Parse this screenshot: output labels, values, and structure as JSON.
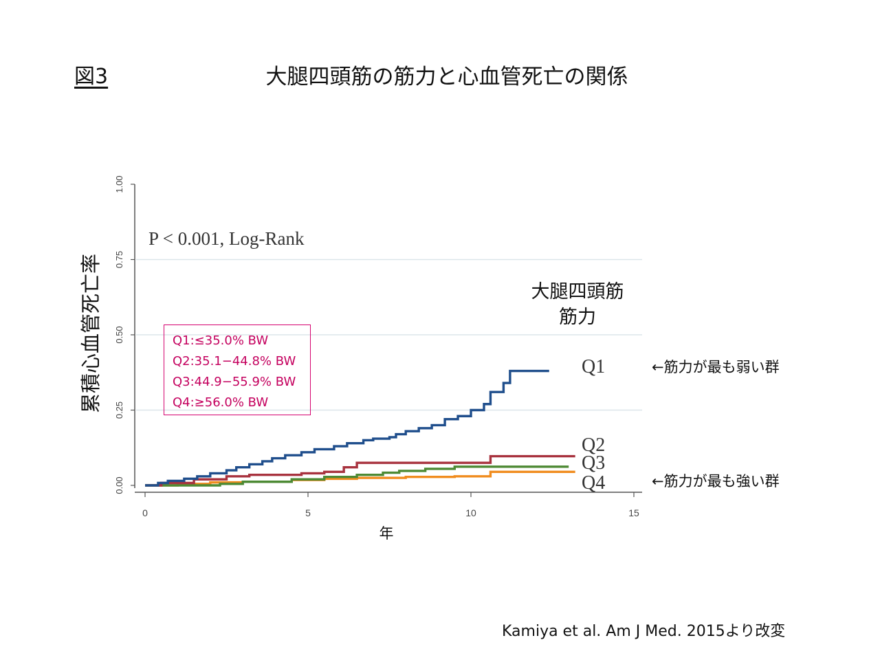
{
  "slide": {
    "figure_label": "図3",
    "title": "大腿四頭筋の筋力と心血管死亡の関係",
    "source": "Kamiya et al. Am J Med. 2015より改変"
  },
  "notes": {
    "weakest": "←筋力が最も弱い群",
    "strongest": "←筋力が最も強い群"
  },
  "legend": {
    "title_line1": "大腿四頭筋",
    "title_line2": "筋力",
    "box_items": [
      "Q1:≤35.0% BW",
      "Q2:35.1−44.8% BW",
      "Q3:44.9−55.9% BW",
      "Q4:≥56.0% BW"
    ]
  },
  "chart_data": {
    "type": "line",
    "step": true,
    "ylabel": "累積心血管死亡率",
    "xlabel": "年",
    "annotation": "P < 0.001, Log-Rank",
    "xlim": [
      0,
      15
    ],
    "ylim": [
      0,
      1
    ],
    "xticks": [
      0,
      5,
      10,
      15
    ],
    "yticks": [
      0,
      0.25,
      0.5,
      0.75,
      1
    ],
    "ytick_labels": [
      "0.00",
      "0.25",
      "0.50",
      "0.75",
      "1.00"
    ],
    "grid": "horizontal",
    "series": [
      {
        "name": "Q1",
        "color": "#1f4e8c",
        "x": [
          0,
          0.4,
          0.7,
          1.2,
          1.6,
          2.0,
          2.5,
          2.8,
          3.2,
          3.6,
          3.9,
          4.3,
          4.8,
          5.2,
          5.8,
          6.2,
          6.7,
          7.0,
          7.5,
          7.7,
          8.0,
          8.4,
          8.8,
          9.2,
          9.6,
          10.0,
          10.4,
          10.6,
          11.0,
          11.2,
          12.4
        ],
        "y": [
          0,
          0.008,
          0.015,
          0.022,
          0.03,
          0.04,
          0.05,
          0.06,
          0.07,
          0.08,
          0.09,
          0.1,
          0.11,
          0.12,
          0.13,
          0.14,
          0.15,
          0.155,
          0.16,
          0.17,
          0.18,
          0.19,
          0.2,
          0.22,
          0.23,
          0.25,
          0.27,
          0.31,
          0.34,
          0.38,
          0.38
        ]
      },
      {
        "name": "Q2",
        "color": "#a8323e",
        "x": [
          0,
          0.5,
          1.5,
          2.5,
          3.2,
          4.8,
          5.5,
          6.1,
          6.5,
          8.0,
          10.0,
          10.6,
          13.2
        ],
        "y": [
          0,
          0.008,
          0.02,
          0.03,
          0.035,
          0.04,
          0.045,
          0.06,
          0.075,
          0.075,
          0.075,
          0.097,
          0.097
        ]
      },
      {
        "name": "Q3",
        "color": "#4d8a34",
        "x": [
          0,
          2.3,
          3.0,
          4.5,
          5.5,
          6.5,
          7.3,
          7.8,
          8.6,
          9.5,
          10.5,
          13.0
        ],
        "y": [
          0,
          0.005,
          0.012,
          0.02,
          0.028,
          0.035,
          0.042,
          0.048,
          0.055,
          0.062,
          0.062,
          0.062
        ]
      },
      {
        "name": "Q4",
        "color": "#f08c1e",
        "x": [
          0,
          1.0,
          2.0,
          3.0,
          4.5,
          5.5,
          6.5,
          8.0,
          9.5,
          10.6,
          13.2
        ],
        "y": [
          0,
          0.005,
          0.01,
          0.012,
          0.018,
          0.022,
          0.025,
          0.028,
          0.03,
          0.045,
          0.045
        ]
      }
    ]
  }
}
